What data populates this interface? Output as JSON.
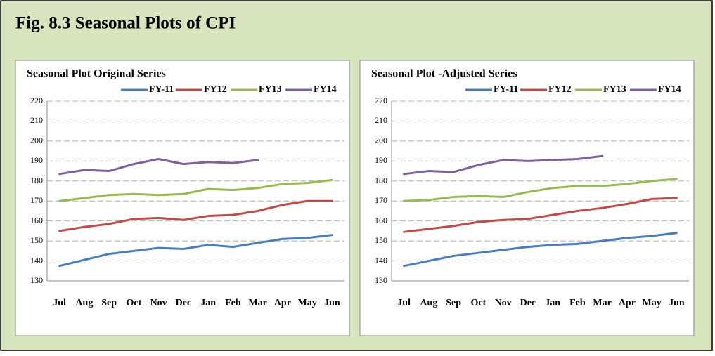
{
  "figure_title": "Fig. 8.3 Seasonal Plots of CPI",
  "chart_data": [
    {
      "type": "line",
      "title": "Seasonal Plot Original Series",
      "categories": [
        "Jul",
        "Aug",
        "Sep",
        "Oct",
        "Nov",
        "Dec",
        "Jan",
        "Feb",
        "Mar",
        "Apr",
        "May",
        "Jun"
      ],
      "series": [
        {
          "name": "FY-11",
          "color": "#4a7ebb",
          "values": [
            137.5,
            140.5,
            143.5,
            145,
            146.5,
            146,
            148,
            147,
            149,
            151,
            151.5,
            153
          ]
        },
        {
          "name": "FY12",
          "color": "#be4b48",
          "values": [
            155,
            157,
            158.5,
            161,
            161.5,
            160.5,
            162.5,
            163,
            165,
            168,
            170,
            170
          ]
        },
        {
          "name": "FY13",
          "color": "#98b954",
          "values": [
            170,
            171.5,
            173,
            173.5,
            173,
            173.5,
            176,
            175.5,
            176.5,
            178.5,
            179,
            180.5
          ]
        },
        {
          "name": "FY14",
          "color": "#7d60a0",
          "values": [
            183.5,
            185.5,
            185,
            188.5,
            191,
            188.5,
            189.5,
            189,
            190.5,
            null,
            null,
            null
          ]
        }
      ],
      "ylim": [
        130,
        220
      ],
      "yticks": [
        130,
        140,
        150,
        160,
        170,
        180,
        190,
        200,
        210,
        220
      ],
      "grid": true,
      "legend": "top"
    },
    {
      "type": "line",
      "title": "Seasonal Plot -Adjusted Series",
      "categories": [
        "Jul",
        "Aug",
        "Sep",
        "Oct",
        "Nov",
        "Dec",
        "Jan",
        "Feb",
        "Mar",
        "Apr",
        "May",
        "Jun"
      ],
      "series": [
        {
          "name": "FY-11",
          "color": "#4a7ebb",
          "values": [
            137.5,
            140,
            142.5,
            144,
            145.5,
            147,
            148,
            148.5,
            150,
            151.5,
            152.5,
            154
          ]
        },
        {
          "name": "FY12",
          "color": "#be4b48",
          "values": [
            154.5,
            156,
            157.5,
            159.5,
            160.5,
            161,
            163,
            165,
            166.5,
            168.5,
            171,
            171.5
          ]
        },
        {
          "name": "FY13",
          "color": "#98b954",
          "values": [
            170,
            170.5,
            172,
            172.5,
            172,
            174.5,
            176.5,
            177.5,
            177.5,
            178.5,
            180,
            181
          ]
        },
        {
          "name": "FY14",
          "color": "#7d60a0",
          "values": [
            183.5,
            185,
            184.5,
            188,
            190.5,
            190,
            190.5,
            191,
            192.5,
            null,
            null,
            null
          ]
        }
      ],
      "ylim": [
        130,
        220
      ],
      "yticks": [
        130,
        140,
        150,
        160,
        170,
        180,
        190,
        200,
        210,
        220
      ],
      "grid": true,
      "legend": "top"
    }
  ]
}
